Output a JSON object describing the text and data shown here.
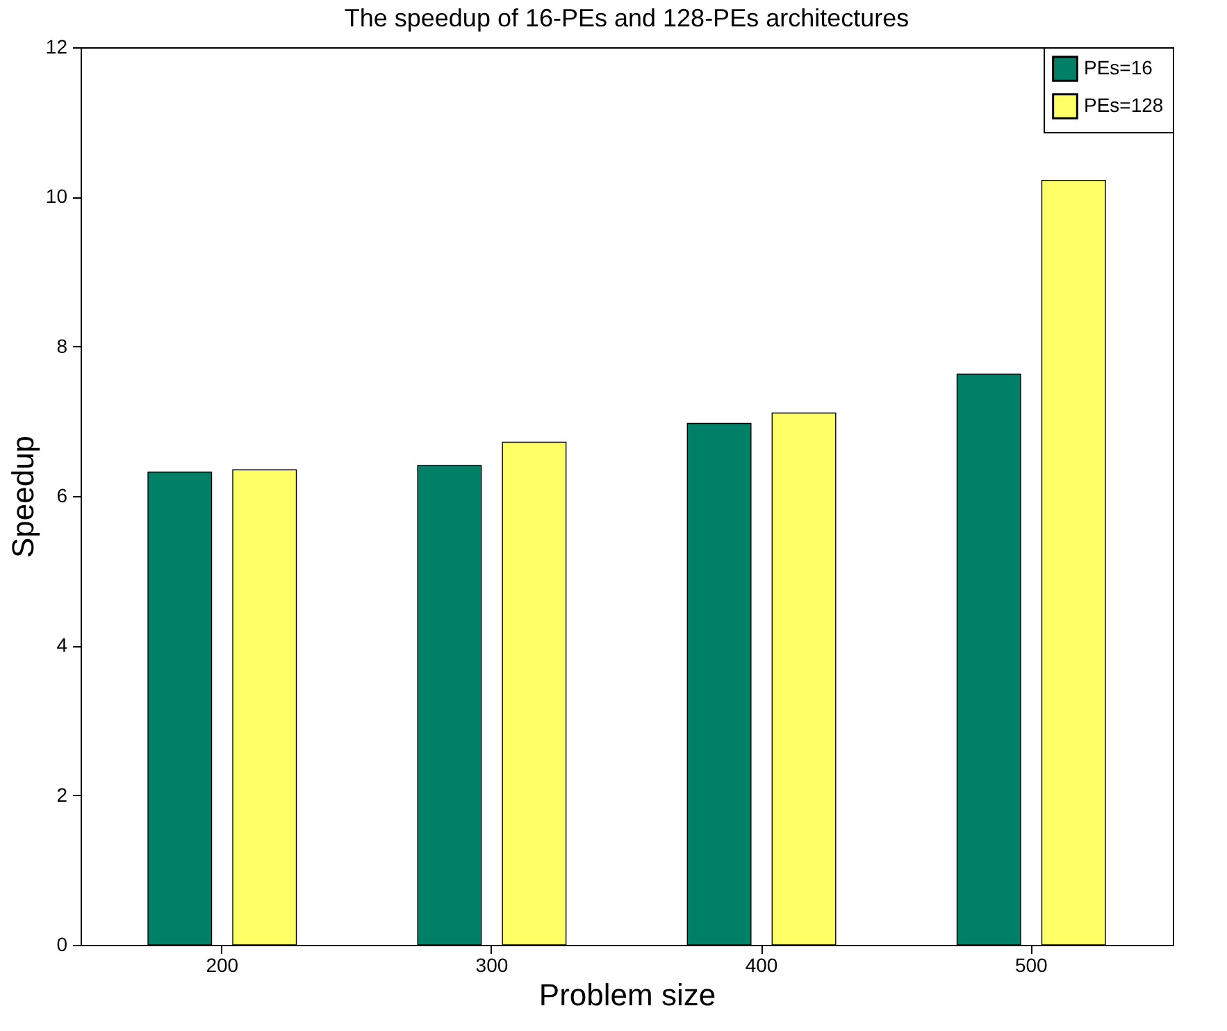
{
  "chart_data": {
    "type": "bar",
    "title": "The speedup of 16-PEs and 128-PEs architectures",
    "xlabel": "Problem size",
    "ylabel": "Speedup",
    "categories": [
      "200",
      "300",
      "400",
      "500"
    ],
    "series": [
      {
        "name": "PEs=16",
        "color": "#008066",
        "values": [
          6.32,
          6.41,
          6.97,
          7.63
        ]
      },
      {
        "name": "PEs=128",
        "color": "#ffff66",
        "values": [
          6.35,
          6.72,
          7.11,
          10.22
        ]
      }
    ],
    "ylim": [
      0,
      12
    ],
    "yticks": [
      0,
      2,
      4,
      6,
      8,
      10,
      12
    ],
    "grid": false,
    "legend": "top right"
  }
}
